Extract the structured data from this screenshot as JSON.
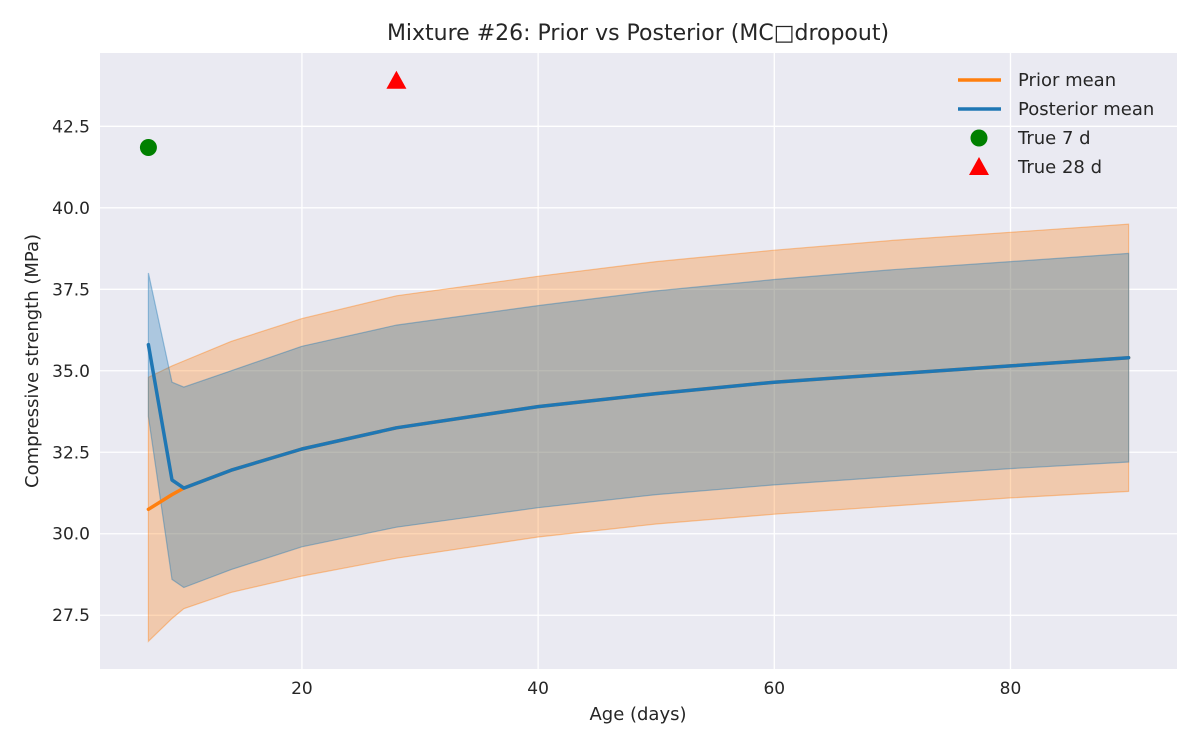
{
  "chart_data": {
    "type": "line",
    "title": "Mixture #26: Prior vs Posterior (MC□dropout)",
    "xlabel": "Age (days)",
    "ylabel": "Compressive strength (MPa)",
    "xlim": [
      2.9,
      94.1
    ],
    "ylim": [
      25.85,
      44.75
    ],
    "xticks": [
      20,
      40,
      60,
      80
    ],
    "yticks": [
      27.5,
      30.0,
      32.5,
      35.0,
      37.5,
      40.0,
      42.5
    ],
    "grid": true,
    "legend_position": "top-right",
    "series": [
      {
        "name": "Prior mean",
        "kind": "line",
        "color": "#ff7f0e",
        "x": [
          7,
          9,
          10,
          14,
          20,
          28,
          40,
          50,
          60,
          70,
          80,
          90
        ],
        "y": [
          30.75,
          31.2,
          31.4,
          31.95,
          32.6,
          33.25,
          33.9,
          34.3,
          34.65,
          34.9,
          35.15,
          35.4
        ]
      },
      {
        "name": "Posterior mean",
        "kind": "line",
        "color": "#1f77b4",
        "x": [
          7,
          9,
          10,
          14,
          20,
          28,
          40,
          50,
          60,
          70,
          80,
          90
        ],
        "y": [
          35.8,
          31.65,
          31.4,
          31.95,
          32.6,
          33.25,
          33.9,
          34.3,
          34.65,
          34.9,
          35.15,
          35.4
        ]
      },
      {
        "name": "Prior band",
        "kind": "band",
        "color": "#ff7f0e",
        "x": [
          7,
          9,
          10,
          14,
          20,
          28,
          40,
          50,
          60,
          70,
          80,
          90
        ],
        "lower": [
          26.7,
          27.4,
          27.7,
          28.2,
          28.7,
          29.25,
          29.9,
          30.3,
          30.6,
          30.85,
          31.1,
          31.3
        ],
        "upper": [
          34.8,
          35.15,
          35.3,
          35.9,
          36.6,
          37.3,
          37.9,
          38.35,
          38.7,
          39.0,
          39.25,
          39.5
        ]
      },
      {
        "name": "Posterior band",
        "kind": "band",
        "color": "#1f77b4",
        "x": [
          7,
          9,
          10,
          14,
          20,
          28,
          40,
          50,
          60,
          70,
          80,
          90
        ],
        "lower": [
          33.6,
          28.6,
          28.35,
          28.9,
          29.6,
          30.2,
          30.8,
          31.2,
          31.5,
          31.75,
          32.0,
          32.2
        ],
        "upper": [
          38.0,
          34.65,
          34.5,
          35.0,
          35.75,
          36.4,
          37.0,
          37.45,
          37.8,
          38.1,
          38.35,
          38.6
        ]
      },
      {
        "name": "True 7 d",
        "kind": "marker",
        "marker": "circle",
        "color": "#008000",
        "x": [
          7
        ],
        "y": [
          41.85
        ]
      },
      {
        "name": "True 28 d",
        "kind": "marker",
        "marker": "triangle",
        "color": "#ff0000",
        "x": [
          28
        ],
        "y": [
          43.9
        ]
      }
    ],
    "legend": [
      "Prior mean",
      "Posterior mean",
      "True 7 d",
      "True 28 d"
    ]
  }
}
